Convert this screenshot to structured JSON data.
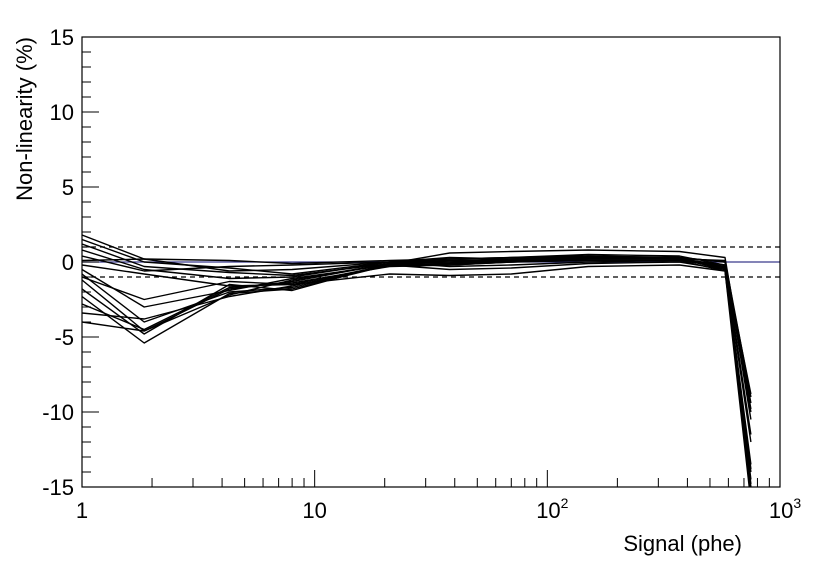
{
  "chart_data": {
    "type": "line",
    "title": "",
    "xlabel": "Signal (phe)",
    "ylabel": "Non-linearity (%)",
    "x_scale": "log",
    "xlim": [
      1,
      1000
    ],
    "ylim": [
      -15,
      15
    ],
    "grid": false,
    "x_ticks": [
      {
        "base": "1",
        "exp": ""
      },
      {
        "base": "10",
        "exp": ""
      },
      {
        "base": "10",
        "exp": "2"
      },
      {
        "base": "10",
        "exp": "3"
      }
    ],
    "y_ticks": [
      "15",
      "10",
      "5",
      "0",
      "-5",
      "-10",
      "-15"
    ],
    "y_tick_values": [
      15,
      10,
      5,
      0,
      -5,
      -10,
      -15
    ],
    "reference_lines": [
      {
        "y": 0,
        "style": "solid",
        "color": "#3a3a8c"
      },
      {
        "y": 1,
        "style": "dashed",
        "color": "#000000"
      },
      {
        "y": -1,
        "style": "dashed",
        "color": "#000000"
      }
    ],
    "series_color": "#000000",
    "x": [
      1,
      1.85,
      4.3,
      8,
      21,
      38,
      70,
      150,
      370,
      580,
      750
    ],
    "series": [
      {
        "values": [
          1.8,
          0.2,
          -0.6,
          -0.5,
          0.0,
          0.1,
          0.1,
          0.3,
          0.2,
          0.1,
          -9.0
        ]
      },
      {
        "values": [
          1.5,
          0.0,
          -0.4,
          -0.8,
          0.0,
          0.2,
          0.3,
          0.5,
          0.4,
          -0.2,
          -8.8
        ]
      },
      {
        "values": [
          1.2,
          -0.3,
          -0.7,
          -0.9,
          -0.1,
          0.0,
          0.2,
          0.4,
          0.3,
          0.0,
          -9.4
        ]
      },
      {
        "values": [
          0.8,
          -0.5,
          -1.1,
          -1.0,
          0.0,
          -0.3,
          -0.2,
          0.0,
          0.1,
          -0.3,
          -10.0
        ]
      },
      {
        "values": [
          0.4,
          -0.6,
          -0.3,
          -0.2,
          0.0,
          0.3,
          0.2,
          0.3,
          0.2,
          -0.2,
          -11.5
        ]
      },
      {
        "values": [
          -0.2,
          -0.8,
          -1.6,
          -1.5,
          -0.2,
          -0.2,
          0.0,
          0.2,
          0.2,
          -0.4,
          -13.5
        ]
      },
      {
        "values": [
          -0.8,
          -4.0,
          -2.0,
          -1.7,
          -0.2,
          -0.1,
          0.1,
          0.3,
          0.3,
          -0.5,
          -14.0
        ]
      },
      {
        "values": [
          -1.2,
          -4.6,
          -1.8,
          -1.3,
          -0.1,
          0.0,
          0.1,
          0.2,
          0.2,
          -0.3,
          -14.5
        ]
      },
      {
        "values": [
          -1.8,
          -4.8,
          -1.5,
          -1.9,
          -0.1,
          0.1,
          0.2,
          0.3,
          0.3,
          -0.4,
          -15.5
        ]
      },
      {
        "values": [
          -2.3,
          -5.4,
          -2.1,
          -1.8,
          -0.2,
          -0.1,
          0.0,
          0.1,
          0.1,
          -0.6,
          -16.0
        ]
      },
      {
        "values": [
          -2.8,
          -4.5,
          -1.7,
          -1.4,
          -0.3,
          -0.2,
          0.0,
          0.2,
          0.2,
          -0.5,
          -15.0
        ]
      },
      {
        "values": [
          -3.4,
          -3.8,
          -2.3,
          -1.6,
          -0.2,
          -0.1,
          0.1,
          0.2,
          0.2,
          -0.4,
          -12.0
        ]
      },
      {
        "values": [
          -4.0,
          -4.6,
          -2.2,
          -1.2,
          -0.1,
          0.6,
          0.7,
          0.8,
          0.7,
          0.3,
          -9.8
        ]
      },
      {
        "values": [
          -1.0,
          -2.5,
          -1.3,
          -1.5,
          -0.8,
          -0.9,
          -0.8,
          -0.3,
          -0.2,
          -0.6,
          -13.8
        ]
      },
      {
        "values": [
          0.1,
          0.2,
          0.1,
          -0.1,
          0.1,
          0.2,
          0.3,
          0.4,
          0.3,
          0.0,
          -10.5
        ]
      },
      {
        "values": [
          -0.5,
          -3.0,
          -1.9,
          -1.1,
          -0.2,
          -0.5,
          -0.4,
          -0.1,
          0.0,
          -0.5,
          -14.8
        ]
      }
    ]
  }
}
